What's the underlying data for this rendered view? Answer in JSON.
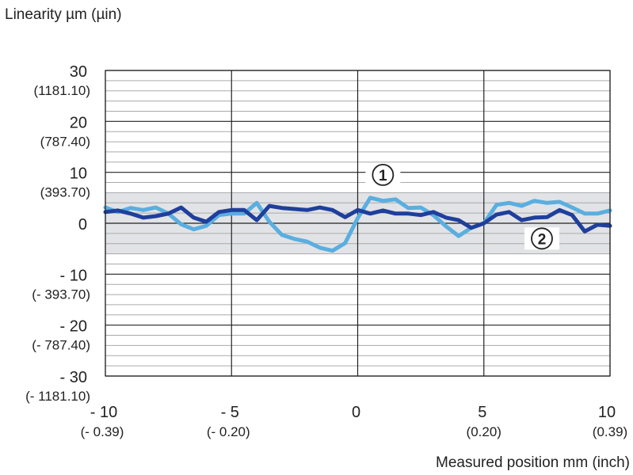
{
  "chart_data": {
    "type": "line",
    "ylabel": "Linearity µm (µin)",
    "xlabel": "Measured position mm (inch)",
    "xlim": [
      -10,
      10
    ],
    "ylim": [
      -30,
      30
    ],
    "grid": true,
    "tolerance_band": [
      -6,
      6
    ],
    "x_ticks": [
      {
        "value": -10,
        "label": "- 10",
        "sub": "(- 0.39)"
      },
      {
        "value": -5,
        "label": "- 5",
        "sub": "(- 0.20)"
      },
      {
        "value": 0,
        "label": "0",
        "sub": ""
      },
      {
        "value": 5,
        "label": "5",
        "sub": "(0.20)"
      },
      {
        "value": 10,
        "label": "10",
        "sub": "(0.39)"
      }
    ],
    "y_ticks": [
      {
        "value": 30,
        "label": "30",
        "sub": "(1181.10)"
      },
      {
        "value": 20,
        "label": "20",
        "sub": "(787.40)"
      },
      {
        "value": 10,
        "label": "10",
        "sub": "(393.70)"
      },
      {
        "value": 0,
        "label": "0",
        "sub": ""
      },
      {
        "value": -10,
        "label": "- 10",
        "sub": "(- 393.70)"
      },
      {
        "value": -20,
        "label": "- 20",
        "sub": "(- 787.40)"
      },
      {
        "value": -30,
        "label": "- 30",
        "sub": "(- 1181.10)"
      }
    ],
    "x": [
      -10,
      -9.5,
      -9,
      -8.5,
      -8,
      -7.5,
      -7,
      -6.5,
      -6,
      -5.5,
      -5,
      -4.5,
      -4,
      -3.5,
      -3,
      -2.5,
      -2,
      -1.5,
      -1,
      -0.5,
      0,
      0.5,
      1,
      1.5,
      2,
      2.5,
      3,
      3.5,
      4,
      4.5,
      5,
      5.5,
      6,
      6.5,
      7,
      7.5,
      8,
      8.5,
      9,
      9.5,
      10
    ],
    "series": [
      {
        "name": "①",
        "color": "#5aaee0",
        "values": [
          3.1,
          2.2,
          3.0,
          2.6,
          3.1,
          1.9,
          -0.2,
          -1.2,
          -0.5,
          1.6,
          1.9,
          1.9,
          4.0,
          0.3,
          -2.3,
          -3.1,
          -3.6,
          -4.8,
          -5.4,
          -3.9,
          1.0,
          5.0,
          4.4,
          4.7,
          3.0,
          3.1,
          1.6,
          -0.6,
          -2.5,
          -0.9,
          0.0,
          3.6,
          4.0,
          3.4,
          4.4,
          4.0,
          4.2,
          3.1,
          1.9,
          1.9,
          2.5
        ],
        "label_at": [
          1,
          9.5
        ]
      },
      {
        "name": "②",
        "color": "#1f3f9c",
        "values": [
          2.2,
          2.5,
          1.9,
          1.1,
          1.4,
          1.9,
          3.1,
          1.1,
          0.3,
          2.2,
          2.6,
          2.6,
          0.6,
          3.4,
          3.0,
          2.8,
          2.6,
          3.1,
          2.6,
          1.2,
          2.6,
          1.9,
          2.5,
          1.9,
          1.9,
          1.6,
          2.2,
          1.1,
          0.6,
          -0.9,
          0.0,
          1.7,
          2.2,
          0.6,
          1.1,
          1.2,
          2.6,
          1.6,
          -1.6,
          -0.3,
          -0.5
        ],
        "label_at": [
          7.3,
          -3
        ]
      }
    ],
    "colors": {
      "band": "#e2e3e6",
      "grid_minor": "#aaaaaa",
      "grid_major": "#222222"
    }
  }
}
